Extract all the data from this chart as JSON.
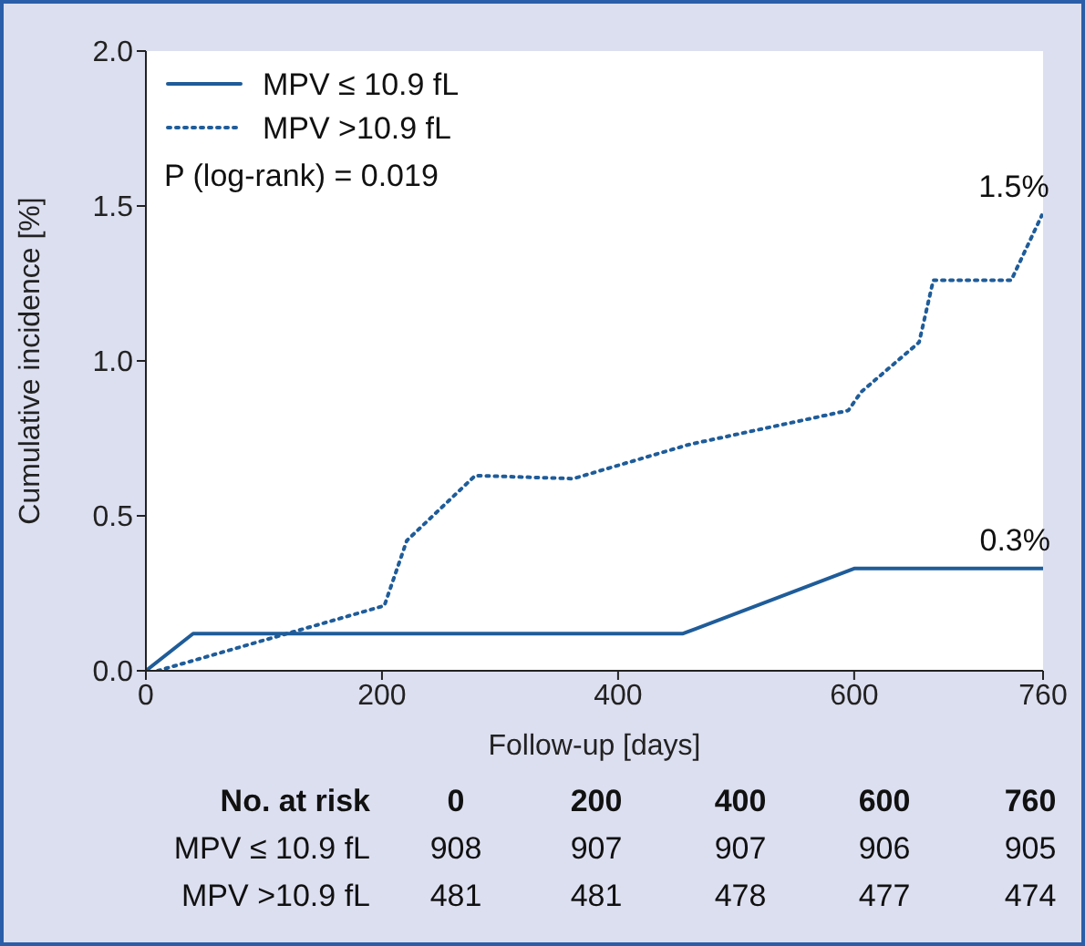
{
  "chart_data": {
    "type": "line",
    "xlabel": "Follow-up [days]",
    "ylabel": "Cumulative incidence [%]",
    "xlim": [
      0,
      760
    ],
    "xticks": [
      0,
      200,
      400,
      600,
      760
    ],
    "ylim": [
      0,
      2
    ],
    "yticks": [
      {
        "value": 0,
        "label": "0.0"
      },
      0.5,
      {
        "value": 1,
        "label": "1.0"
      },
      1.5,
      {
        "value": 2,
        "label": "2.0"
      }
    ],
    "grid": false,
    "legend": "top left",
    "marker": "none",
    "series": [
      {
        "name": "MPV ≤ 10.9 fL",
        "color": "#1f5c99",
        "line_style": "solid",
        "x": [
          0,
          40,
          455,
          600,
          760
        ],
        "values": [
          0,
          0.12,
          0.12,
          0.33,
          0.33
        ]
      },
      {
        "name": "MPV >10.9 fL",
        "color": "#1f5c99",
        "line_style": "dotted",
        "x": [
          10,
          202,
          221,
          279,
          362,
          460,
          595,
          606,
          655,
          667,
          733,
          759
        ],
        "values": [
          0,
          0.21,
          0.42,
          0.63,
          0.62,
          0.73,
          0.84,
          0.9,
          1.06,
          1.26,
          1.26,
          1.47
        ]
      }
    ],
    "annotations": [
      "P (log-rank) = 0.019",
      {
        "text": "1.5%",
        "x": 759,
        "y": 1.47
      },
      {
        "text": "0.3%",
        "x": 760,
        "y": 0.33
      },
      "No. at risk",
      "0",
      "200",
      "400",
      "600",
      "760",
      "MPV ≤ 10.9 fL",
      "908",
      "907",
      "907",
      "906",
      "905",
      "MPV >10.9 fL",
      "481",
      "481",
      "478",
      "477",
      "474"
    ]
  }
}
